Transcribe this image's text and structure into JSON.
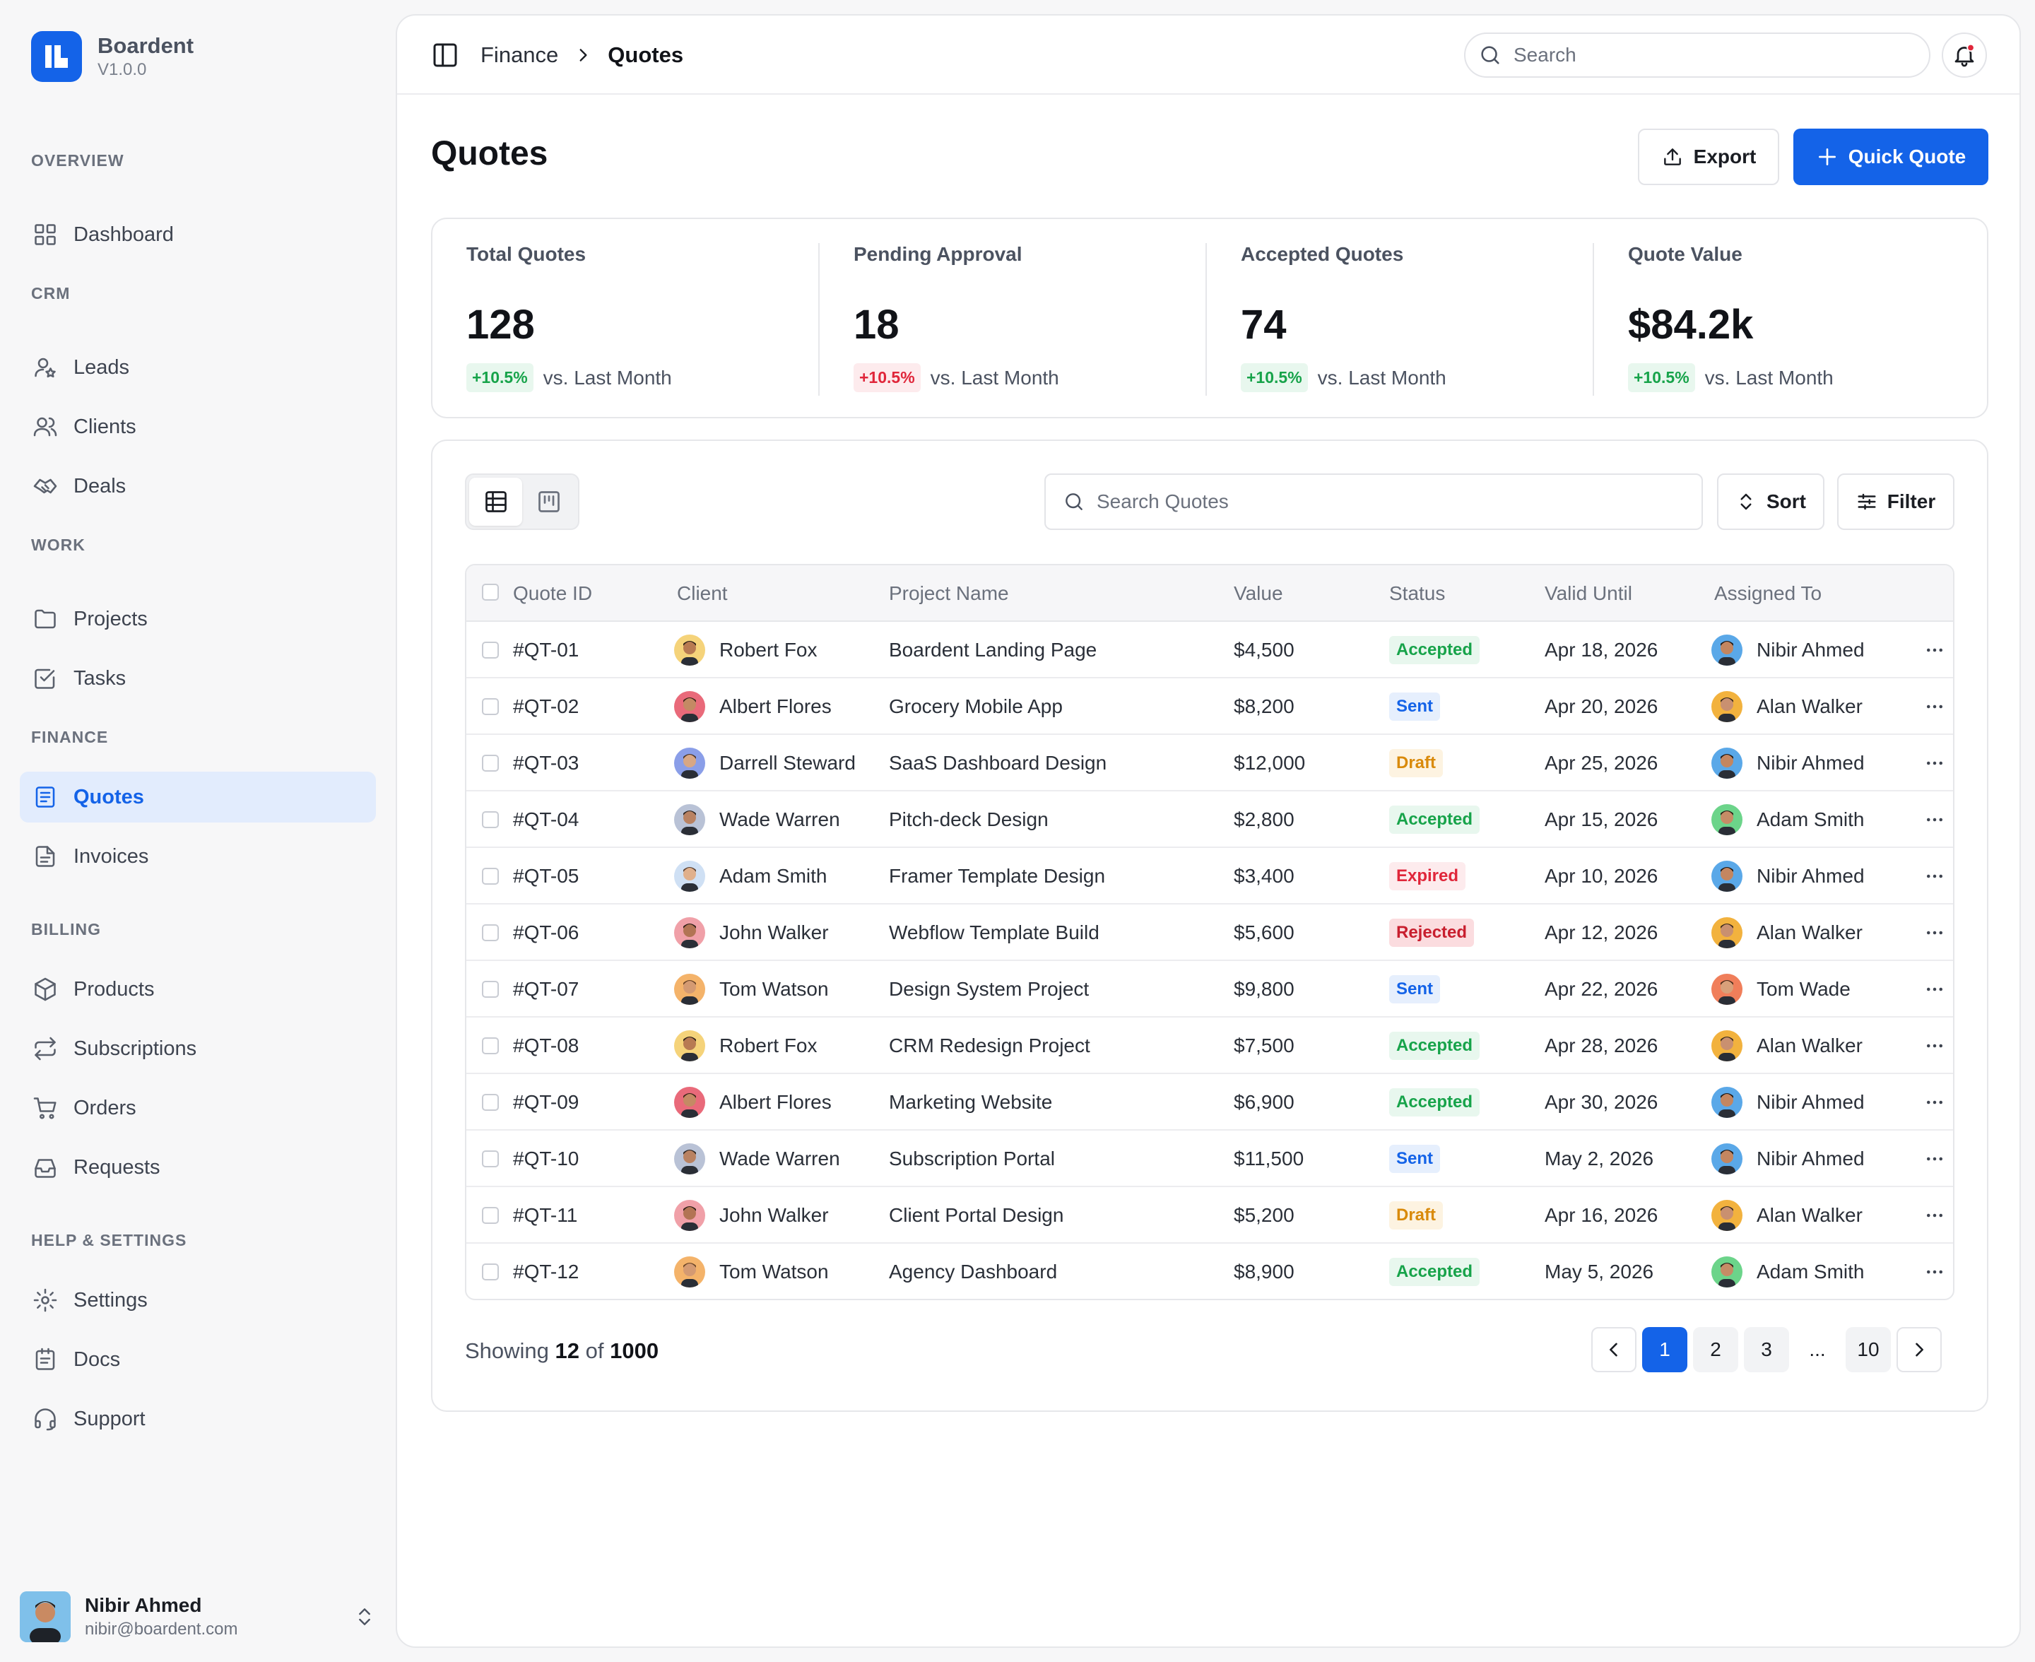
{
  "app": {
    "name": "Boardent",
    "version": "V1.0.0"
  },
  "colors": {
    "accent": "#1463e8",
    "active_bg": "#e2ecfd",
    "positive": "#17a34a",
    "negative": "#e0263a"
  },
  "sidebar": {
    "sections": [
      {
        "title": "OVERVIEW",
        "items": [
          {
            "label": "Dashboard",
            "icon": "grid-icon"
          }
        ]
      },
      {
        "title": "CRM",
        "items": [
          {
            "label": "Leads",
            "icon": "user-star-icon"
          },
          {
            "label": "Clients",
            "icon": "users-icon"
          },
          {
            "label": "Deals",
            "icon": "handshake-icon"
          }
        ]
      },
      {
        "title": "WORK",
        "items": [
          {
            "label": "Projects",
            "icon": "folder-icon"
          },
          {
            "label": "Tasks",
            "icon": "checkbox-icon"
          }
        ]
      },
      {
        "title": "FINANCE",
        "items": [
          {
            "label": "Quotes",
            "icon": "quote-doc-icon",
            "active": true
          },
          {
            "label": "Invoices",
            "icon": "invoice-icon"
          }
        ]
      },
      {
        "title": "BILLING",
        "items": [
          {
            "label": "Products",
            "icon": "box-icon"
          },
          {
            "label": "Subscriptions",
            "icon": "repeat-icon"
          },
          {
            "label": "Orders",
            "icon": "cart-icon"
          },
          {
            "label": "Requests",
            "icon": "inbox-icon"
          }
        ]
      },
      {
        "title": "HELP & SETTINGS",
        "items": [
          {
            "label": "Settings",
            "icon": "gear-icon"
          },
          {
            "label": "Docs",
            "icon": "docs-icon"
          },
          {
            "label": "Support",
            "icon": "headset-icon"
          }
        ]
      }
    ],
    "user": {
      "name": "Nibir Ahmed",
      "email": "nibir@boardent.com"
    }
  },
  "topbar": {
    "breadcrumb": [
      "Finance",
      "Quotes"
    ],
    "search_placeholder": "Search"
  },
  "page": {
    "title": "Quotes",
    "export_label": "Export",
    "quick_quote_label": "Quick Quote"
  },
  "stats": [
    {
      "label": "Total Quotes",
      "value": "128",
      "delta": "+10.5%",
      "trend": "up",
      "compare": "vs. Last Month"
    },
    {
      "label": "Pending Approval",
      "value": "18",
      "delta": "+10.5%",
      "trend": "down",
      "compare": "vs. Last Month"
    },
    {
      "label": "Accepted Quotes",
      "value": "74",
      "delta": "+10.5%",
      "trend": "up",
      "compare": "vs. Last Month"
    },
    {
      "label": "Quote Value",
      "value": "$84.2k",
      "delta": "+10.5%",
      "trend": "up",
      "compare": "vs. Last Month"
    }
  ],
  "table": {
    "search_placeholder": "Search Quotes",
    "sort_label": "Sort",
    "filter_label": "Filter",
    "columns": [
      "Quote ID",
      "Client",
      "Project Name",
      "Value",
      "Status",
      "Valid Until",
      "Assigned To"
    ],
    "rows": [
      {
        "id": "#QT-01",
        "client": "Robert Fox",
        "project": "Boardent Landing Page",
        "value": "$4,500",
        "status": "Accepted",
        "valid": "Apr 18, 2026",
        "assigned": "Nibir Ahmed"
      },
      {
        "id": "#QT-02",
        "client": "Albert Flores",
        "project": "Grocery Mobile App",
        "value": "$8,200",
        "status": "Sent",
        "valid": "Apr 20, 2026",
        "assigned": "Alan Walker"
      },
      {
        "id": "#QT-03",
        "client": "Darrell Steward",
        "project": "SaaS Dashboard Design",
        "value": "$12,000",
        "status": "Draft",
        "valid": "Apr 25, 2026",
        "assigned": "Nibir Ahmed"
      },
      {
        "id": "#QT-04",
        "client": "Wade Warren",
        "project": "Pitch-deck Design",
        "value": "$2,800",
        "status": "Accepted",
        "valid": "Apr 15, 2026",
        "assigned": "Adam Smith"
      },
      {
        "id": "#QT-05",
        "client": "Adam Smith",
        "project": "Framer Template Design",
        "value": "$3,400",
        "status": "Expired",
        "valid": "Apr 10, 2026",
        "assigned": "Nibir Ahmed"
      },
      {
        "id": "#QT-06",
        "client": "John Walker",
        "project": "Webflow Template Build",
        "value": "$5,600",
        "status": "Rejected",
        "valid": "Apr 12, 2026",
        "assigned": "Alan Walker"
      },
      {
        "id": "#QT-07",
        "client": "Tom Watson",
        "project": "Design System Project",
        "value": "$9,800",
        "status": "Sent",
        "valid": "Apr 22, 2026",
        "assigned": "Tom Wade"
      },
      {
        "id": "#QT-08",
        "client": "Robert Fox",
        "project": "CRM Redesign Project",
        "value": "$7,500",
        "status": "Accepted",
        "valid": "Apr 28, 2026",
        "assigned": "Alan Walker"
      },
      {
        "id": "#QT-09",
        "client": "Albert Flores",
        "project": "Marketing Website",
        "value": "$6,900",
        "status": "Accepted",
        "valid": "Apr 30, 2026",
        "assigned": "Nibir Ahmed"
      },
      {
        "id": "#QT-10",
        "client": "Wade Warren",
        "project": "Subscription Portal",
        "value": "$11,500",
        "status": "Sent",
        "valid": "May 2, 2026",
        "assigned": "Nibir Ahmed"
      },
      {
        "id": "#QT-11",
        "client": "John Walker",
        "project": "Client Portal Design",
        "value": "$5,200",
        "status": "Draft",
        "valid": "Apr 16, 2026",
        "assigned": "Alan Walker"
      },
      {
        "id": "#QT-12",
        "client": "Tom Watson",
        "project": "Agency Dashboard",
        "value": "$8,900",
        "status": "Accepted",
        "valid": "May 5, 2026",
        "assigned": "Adam Smith"
      }
    ],
    "status_colors": {
      "Accepted": {
        "fg": "#17a34a",
        "bg": "#e8f7ee"
      },
      "Sent": {
        "fg": "#1463e8",
        "bg": "#e6effd"
      },
      "Draft": {
        "fg": "#d98a0b",
        "bg": "#fdf3e1"
      },
      "Expired": {
        "fg": "#e0263a",
        "bg": "#fdebed"
      },
      "Rejected": {
        "fg": "#c81e2e",
        "bg": "#fbdcdf"
      }
    }
  },
  "footer": {
    "showing_prefix": "Showing",
    "showing_count": "12",
    "showing_of": "of",
    "showing_total": "1000",
    "pages": [
      "1",
      "2",
      "3",
      "...",
      "10"
    ],
    "current_page": "1"
  }
}
